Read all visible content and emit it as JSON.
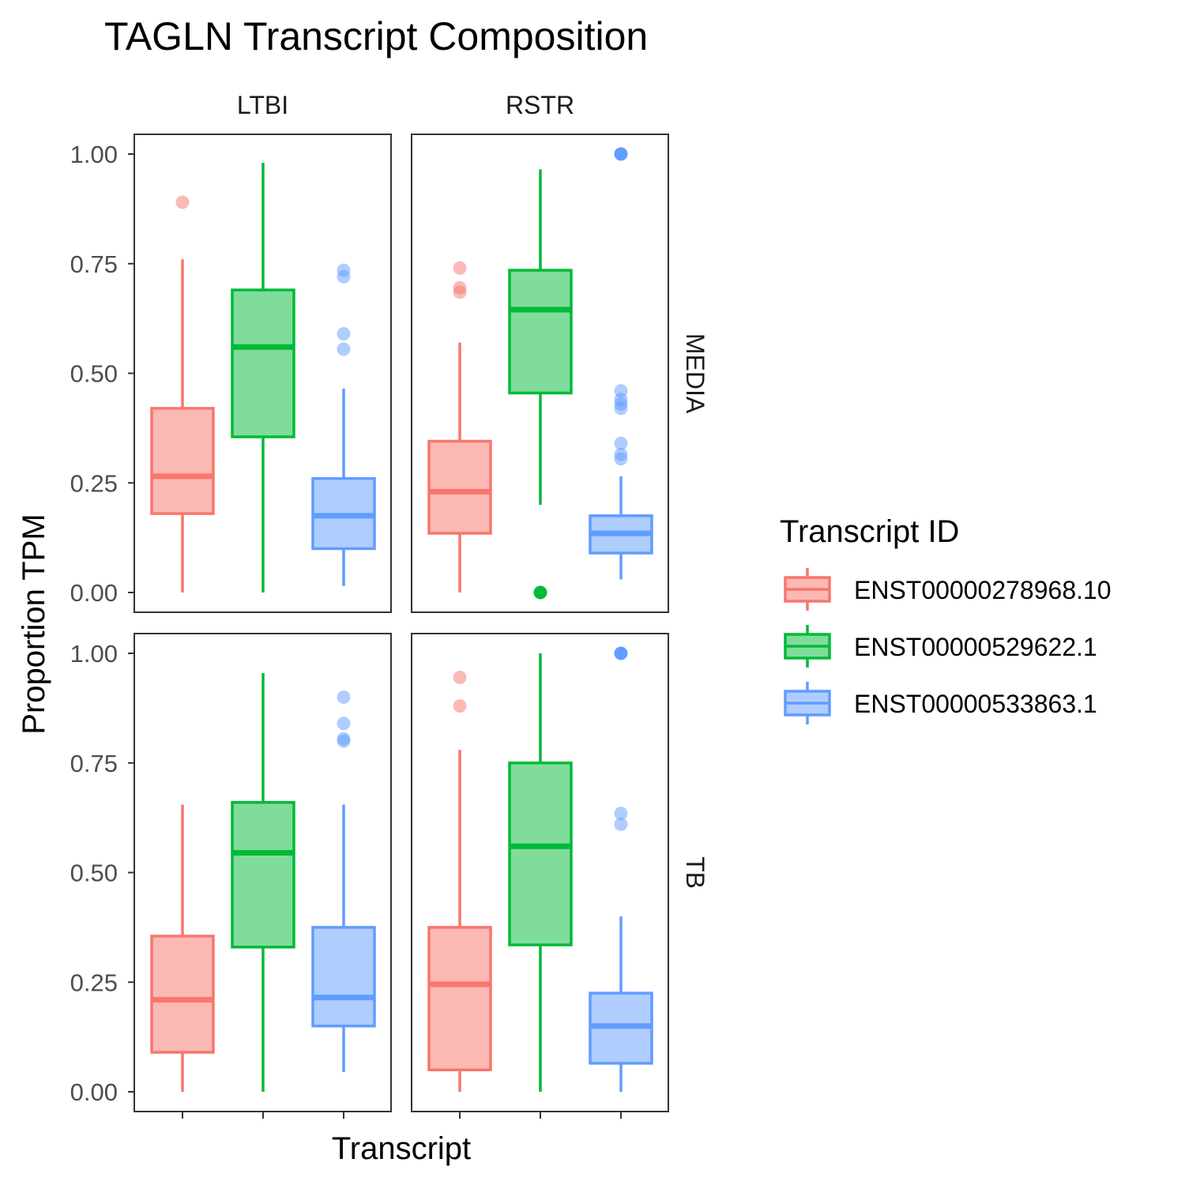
{
  "chart_data": {
    "type": "boxplot",
    "title": "TAGLN Transcript Composition",
    "xlabel": "Transcript",
    "ylabel": "Proportion TPM",
    "ylim": [
      0,
      1
    ],
    "y_ticks": [
      "0.00",
      "0.25",
      "0.50",
      "0.75",
      "1.00"
    ],
    "y_tick_values": [
      0,
      0.25,
      0.5,
      0.75,
      1.0
    ],
    "facet_cols": [
      "LTBI",
      "RSTR"
    ],
    "facet_rows": [
      "MEDIA",
      "TB"
    ],
    "grid": false,
    "legend": {
      "title": "Transcript ID",
      "placement": "right"
    },
    "series": [
      {
        "name": "ENST00000278968.10",
        "color": "#F8766D",
        "fill": "#FBB9B4"
      },
      {
        "name": "ENST00000529622.1",
        "color": "#00BA38",
        "fill": "#80DC9B"
      },
      {
        "name": "ENST00000533863.1",
        "color": "#619CFF",
        "fill": "#B0CDFF"
      }
    ],
    "panels": [
      {
        "col": "LTBI",
        "row": "MEDIA",
        "boxes": [
          {
            "series": 0,
            "min": 0.0,
            "q1": 0.18,
            "median": 0.265,
            "q3": 0.42,
            "max": 0.76,
            "outliers": [
              0.89
            ]
          },
          {
            "series": 1,
            "min": 0.0,
            "q1": 0.355,
            "median": 0.56,
            "q3": 0.69,
            "max": 0.98,
            "outliers": []
          },
          {
            "series": 2,
            "min": 0.015,
            "q1": 0.1,
            "median": 0.175,
            "q3": 0.26,
            "max": 0.465,
            "outliers": [
              0.555,
              0.59,
              0.72,
              0.735
            ]
          }
        ]
      },
      {
        "col": "RSTR",
        "row": "MEDIA",
        "boxes": [
          {
            "series": 0,
            "min": 0.0,
            "q1": 0.135,
            "median": 0.23,
            "q3": 0.345,
            "max": 0.57,
            "outliers": [
              0.685,
              0.695,
              0.74
            ]
          },
          {
            "series": 1,
            "min": 0.2,
            "q1": 0.455,
            "median": 0.645,
            "q3": 0.735,
            "max": 0.965,
            "outliers": [
              0.0
            ]
          },
          {
            "series": 2,
            "min": 0.03,
            "q1": 0.09,
            "median": 0.135,
            "q3": 0.175,
            "max": 0.265,
            "outliers": [
              0.305,
              0.315,
              0.34,
              0.42,
              0.43,
              0.44,
              0.46,
              1.0
            ]
          }
        ]
      },
      {
        "col": "LTBI",
        "row": "TB",
        "boxes": [
          {
            "series": 0,
            "min": 0.0,
            "q1": 0.09,
            "median": 0.21,
            "q3": 0.355,
            "max": 0.655,
            "outliers": []
          },
          {
            "series": 1,
            "min": 0.0,
            "q1": 0.33,
            "median": 0.545,
            "q3": 0.66,
            "max": 0.955,
            "outliers": []
          },
          {
            "series": 2,
            "min": 0.045,
            "q1": 0.15,
            "median": 0.215,
            "q3": 0.375,
            "max": 0.655,
            "outliers": [
              0.8,
              0.805,
              0.84,
              0.9
            ]
          }
        ]
      },
      {
        "col": "RSTR",
        "row": "TB",
        "boxes": [
          {
            "series": 0,
            "min": 0.0,
            "q1": 0.05,
            "median": 0.245,
            "q3": 0.375,
            "max": 0.78,
            "outliers": [
              0.88,
              0.945
            ]
          },
          {
            "series": 1,
            "min": 0.0,
            "q1": 0.335,
            "median": 0.56,
            "q3": 0.75,
            "max": 1.0,
            "outliers": []
          },
          {
            "series": 2,
            "min": 0.0,
            "q1": 0.065,
            "median": 0.15,
            "q3": 0.225,
            "max": 0.4,
            "outliers": [
              0.61,
              0.635,
              1.0
            ]
          }
        ]
      }
    ]
  }
}
